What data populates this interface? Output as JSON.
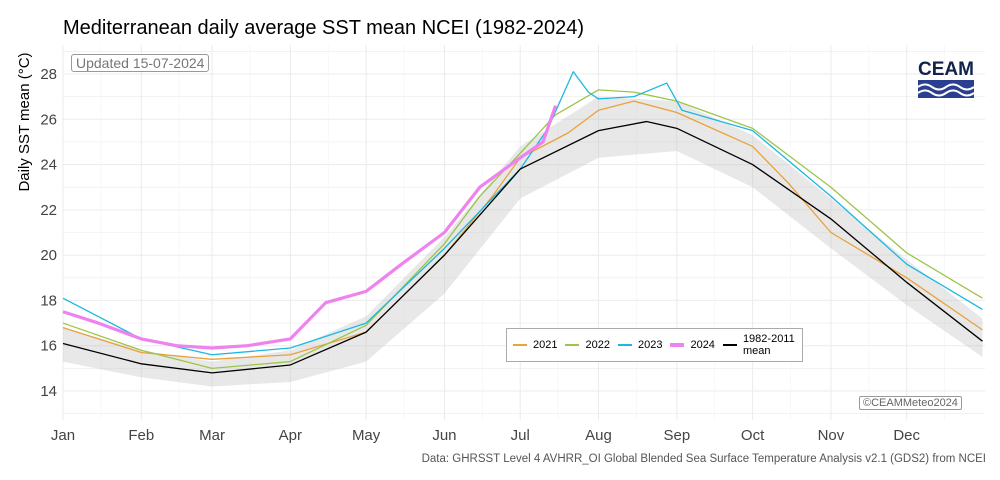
{
  "chart_data": {
    "type": "line",
    "title": "Mediterranean daily average SST mean NCEI (1982-2024)",
    "ylabel": "Daily SST mean (°C)",
    "xlabel": "",
    "ylim": [
      13,
      28.8
    ],
    "yticks": [
      14,
      16,
      18,
      20,
      22,
      24,
      26,
      28
    ],
    "xticks": [
      "Jan",
      "Feb",
      "Mar",
      "Apr",
      "May",
      "Jun",
      "Jul",
      "Aug",
      "Sep",
      "Oct",
      "Nov",
      "Dec"
    ],
    "grid": true,
    "legend_position": "bottom-right",
    "historical_years_envelope": {
      "color": "#bdbdbd",
      "x": [
        "01-01",
        "02-01",
        "03-01",
        "04-01",
        "05-01",
        "06-01",
        "07-01",
        "08-01",
        "09-01",
        "10-01",
        "11-01",
        "12-01",
        "12-31"
      ],
      "low": [
        15.3,
        14.6,
        14.2,
        14.4,
        15.3,
        18.3,
        22.5,
        24.3,
        24.6,
        23.0,
        20.3,
        17.8,
        15.5
      ],
      "high": [
        16.8,
        15.8,
        15.3,
        15.8,
        17.3,
        20.8,
        24.8,
        27.0,
        26.8,
        25.3,
        22.5,
        19.8,
        17.2
      ]
    },
    "series": [
      {
        "name": "2021",
        "color": "#e8a23a",
        "width": 1.3,
        "x": [
          "01-01",
          "02-01",
          "03-01",
          "04-01",
          "05-01",
          "06-01",
          "06-20",
          "07-01",
          "07-20",
          "08-01",
          "08-15",
          "09-01",
          "10-01",
          "10-15",
          "11-01",
          "12-01",
          "12-31"
        ],
        "y": [
          16.8,
          15.7,
          15.4,
          15.6,
          16.6,
          20.0,
          22.6,
          24.3,
          25.4,
          26.4,
          26.8,
          26.3,
          24.8,
          23.2,
          21.0,
          19.0,
          16.7
        ]
      },
      {
        "name": "2022",
        "color": "#9dc44a",
        "width": 1.3,
        "x": [
          "01-01",
          "02-01",
          "03-01",
          "04-01",
          "05-01",
          "06-01",
          "06-15",
          "07-01",
          "07-15",
          "08-01",
          "08-15",
          "09-01",
          "10-01",
          "11-01",
          "12-01",
          "12-31"
        ],
        "y": [
          17.0,
          15.8,
          15.0,
          15.3,
          16.9,
          20.5,
          22.6,
          24.5,
          26.2,
          27.3,
          27.2,
          26.8,
          25.6,
          23.0,
          20.1,
          18.1
        ]
      },
      {
        "name": "2023",
        "color": "#1cb8e0",
        "width": 1.3,
        "x": [
          "01-01",
          "02-01",
          "03-01",
          "04-01",
          "05-01",
          "06-01",
          "07-01",
          "07-12",
          "07-22",
          "07-28",
          "08-01",
          "08-15",
          "08-28",
          "09-03",
          "10-01",
          "11-01",
          "12-01",
          "12-31"
        ],
        "y": [
          18.1,
          16.3,
          15.6,
          15.9,
          17.0,
          20.3,
          23.8,
          25.6,
          28.1,
          27.2,
          26.9,
          27.0,
          27.6,
          26.4,
          25.5,
          22.6,
          19.6,
          17.6
        ]
      },
      {
        "name": "2024",
        "color": "#ee82ee",
        "width": 3.2,
        "x": [
          "01-01",
          "01-15",
          "02-01",
          "02-15",
          "03-01",
          "03-15",
          "04-01",
          "04-15",
          "05-01",
          "05-15",
          "06-01",
          "06-15",
          "07-01",
          "07-10",
          "07-15"
        ],
        "y": [
          17.5,
          17.0,
          16.3,
          16.0,
          15.9,
          16.0,
          16.3,
          17.9,
          18.4,
          19.6,
          21.0,
          23.0,
          24.3,
          25.0,
          26.6
        ]
      },
      {
        "name": "1982-2011 mean",
        "color": "#000000",
        "width": 1.3,
        "x": [
          "01-01",
          "02-01",
          "03-01",
          "04-01",
          "05-01",
          "06-01",
          "07-01",
          "08-01",
          "08-20",
          "09-01",
          "10-01",
          "11-01",
          "12-01",
          "12-31"
        ],
        "y": [
          16.1,
          15.2,
          14.8,
          15.15,
          16.6,
          20.0,
          23.8,
          25.5,
          25.9,
          25.6,
          24.0,
          21.6,
          18.8,
          16.2
        ]
      }
    ]
  },
  "updated_label": "Updated 15-07-2024",
  "credit": "©CEAMMeteo2024",
  "source": "Data: GHRSST Level 4 AVHRR_OI Global Blended Sea Surface Temperature Analysis v2.1 (GDS2) from NCEI",
  "logo": {
    "text": "CEAM",
    "color": "#12234a",
    "wave_color": "#2a3f8f"
  },
  "legend": {
    "items": [
      "2021",
      "2022",
      "2023",
      "2024",
      "1982-2011 mean"
    ]
  }
}
